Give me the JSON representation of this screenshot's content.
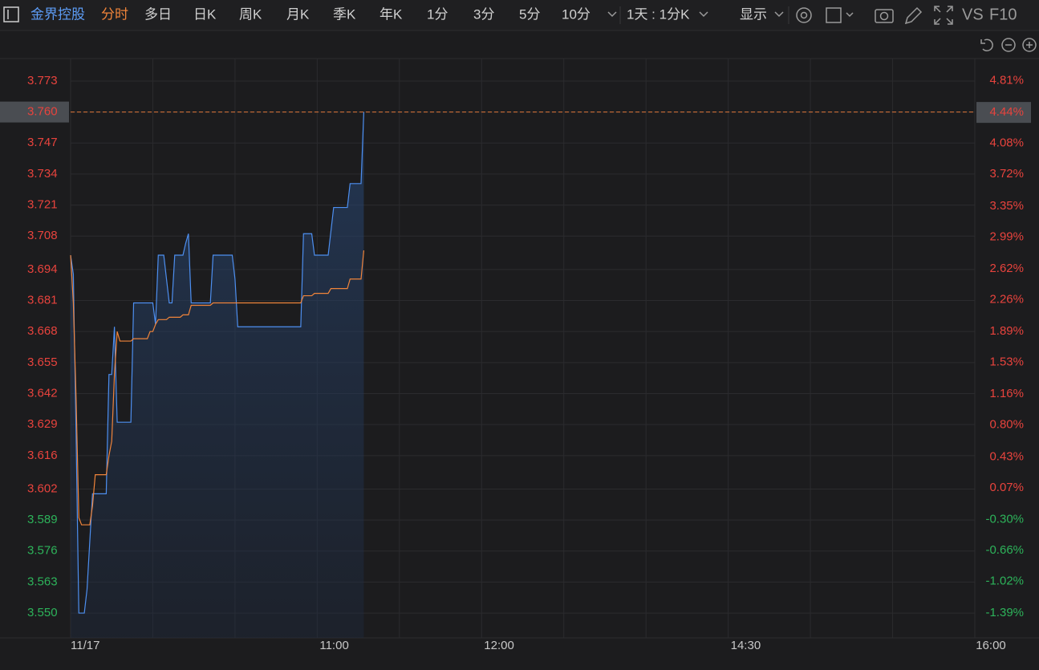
{
  "toolbar": {
    "stock": "金界控股",
    "tabs": [
      "分时",
      "多日",
      "日K",
      "周K",
      "月K",
      "季K",
      "年K",
      "1分",
      "3分",
      "5分",
      "10分"
    ],
    "period": "1天 : 1分K",
    "display": "显示",
    "vs": "VS",
    "f10": "F10"
  },
  "chart_data": {
    "type": "line",
    "x": [
      "09:30",
      "09:31",
      "09:32",
      "09:33",
      "09:34",
      "09:35",
      "09:36",
      "09:37",
      "09:38",
      "09:39",
      "09:40",
      "09:41",
      "09:42",
      "09:43",
      "09:44",
      "09:45",
      "09:46",
      "09:47",
      "09:48",
      "09:49",
      "09:50",
      "09:51",
      "09:52",
      "09:53",
      "09:54",
      "09:55",
      "09:56",
      "09:57",
      "09:58",
      "09:59",
      "10:00",
      "10:01",
      "10:02",
      "10:03",
      "10:04",
      "10:05",
      "10:06",
      "10:07",
      "10:08",
      "10:09",
      "10:10",
      "10:11",
      "10:12",
      "10:13",
      "10:14",
      "10:15",
      "10:16",
      "10:17",
      "10:18",
      "10:19",
      "10:20",
      "10:21",
      "10:22",
      "10:23",
      "10:24",
      "10:25",
      "10:26",
      "10:27",
      "10:28",
      "10:29",
      "10:30",
      "10:31",
      "10:32",
      "10:33",
      "10:34",
      "10:35",
      "10:36",
      "10:37",
      "10:38",
      "10:39",
      "10:40",
      "10:41",
      "10:42",
      "10:43",
      "10:44",
      "10:45",
      "10:46",
      "10:47",
      "10:48",
      "10:49",
      "10:50",
      "10:51",
      "10:52",
      "10:53",
      "10:54",
      "10:55",
      "10:56",
      "10:57",
      "10:58",
      "10:59",
      "11:00",
      "11:01",
      "11:02",
      "11:03",
      "11:04",
      "11:05",
      "11:06",
      "11:07",
      "11:08",
      "11:09",
      "11:10",
      "11:11",
      "11:12",
      "11:13",
      "11:14",
      "11:15",
      "11:16",
      "11:17"
    ],
    "series": [
      {
        "color": "#4d8ff0",
        "area": true,
        "values": [
          3.7,
          3.692,
          3.625,
          3.55,
          3.55,
          3.55,
          3.56,
          3.58,
          3.6,
          3.6,
          3.6,
          3.6,
          3.6,
          3.6,
          3.65,
          3.65,
          3.67,
          3.63,
          3.63,
          3.63,
          3.63,
          3.63,
          3.63,
          3.68,
          3.68,
          3.68,
          3.68,
          3.68,
          3.68,
          3.68,
          3.68,
          3.671,
          3.7,
          3.7,
          3.7,
          3.69,
          3.68,
          3.68,
          3.7,
          3.7,
          3.7,
          3.7,
          3.705,
          3.709,
          3.68,
          3.68,
          3.68,
          3.68,
          3.68,
          3.68,
          3.68,
          3.68,
          3.7,
          3.7,
          3.7,
          3.7,
          3.7,
          3.7,
          3.7,
          3.7,
          3.69,
          3.67,
          3.67,
          3.67,
          3.67,
          3.67,
          3.67,
          3.67,
          3.67,
          3.67,
          3.67,
          3.67,
          3.67,
          3.67,
          3.67,
          3.67,
          3.67,
          3.67,
          3.67,
          3.67,
          3.67,
          3.67,
          3.67,
          3.67,
          3.67,
          3.709,
          3.709,
          3.709,
          3.709,
          3.7,
          3.7,
          3.7,
          3.7,
          3.7,
          3.7,
          3.71,
          3.72,
          3.72,
          3.72,
          3.72,
          3.72,
          3.72,
          3.73,
          3.73,
          3.73,
          3.73,
          3.73,
          3.76
        ]
      },
      {
        "color": "#f0843a",
        "area": false,
        "values": [
          3.7,
          3.68,
          3.64,
          3.59,
          3.587,
          3.587,
          3.587,
          3.587,
          3.595,
          3.608,
          3.608,
          3.608,
          3.608,
          3.608,
          3.616,
          3.622,
          3.65,
          3.668,
          3.664,
          3.664,
          3.664,
          3.664,
          3.664,
          3.665,
          3.665,
          3.665,
          3.665,
          3.665,
          3.665,
          3.668,
          3.668,
          3.671,
          3.673,
          3.673,
          3.673,
          3.673,
          3.674,
          3.674,
          3.674,
          3.674,
          3.674,
          3.675,
          3.675,
          3.675,
          3.679,
          3.679,
          3.679,
          3.679,
          3.679,
          3.679,
          3.679,
          3.679,
          3.68,
          3.68,
          3.68,
          3.68,
          3.68,
          3.68,
          3.68,
          3.68,
          3.68,
          3.68,
          3.68,
          3.68,
          3.68,
          3.68,
          3.68,
          3.68,
          3.68,
          3.68,
          3.68,
          3.68,
          3.68,
          3.68,
          3.68,
          3.68,
          3.68,
          3.68,
          3.68,
          3.68,
          3.68,
          3.68,
          3.68,
          3.68,
          3.68,
          3.683,
          3.683,
          3.683,
          3.683,
          3.684,
          3.684,
          3.684,
          3.684,
          3.684,
          3.684,
          3.686,
          3.686,
          3.686,
          3.686,
          3.686,
          3.686,
          3.686,
          3.69,
          3.69,
          3.69,
          3.69,
          3.69,
          3.702
        ]
      }
    ],
    "sessions": [
      [
        "09:30",
        "12:00"
      ],
      [
        "13:00",
        "16:00"
      ]
    ],
    "xlim": [
      "09:30",
      "16:00"
    ],
    "xticks": [
      {
        "value": "09:30",
        "label": "11/17"
      },
      "11:00",
      "12:00",
      "14:30",
      "16:00"
    ],
    "xgrid": [
      "10:00",
      "10:30",
      "11:00",
      "11:30",
      "12:00",
      "13:30",
      "14:00",
      "14:30",
      "15:00",
      "15:30"
    ],
    "ylim": [
      3.5396,
      3.7824
    ],
    "yticks": [
      {
        "value": 3.55,
        "label": "3.550"
      },
      3.563,
      3.576,
      3.589,
      3.602,
      3.616,
      3.629,
      3.642,
      3.655,
      3.668,
      3.681,
      3.694,
      3.708,
      3.721,
      3.734,
      3.747,
      {
        "value": 3.76,
        "label": "3.760"
      },
      3.773
    ],
    "y2lim": [
      -1.678,
      5.067
    ],
    "y2ticks": [
      {
        "value": -1.39,
        "label": "-1.39%"
      },
      {
        "value": -1.02,
        "label": "-1.02%"
      },
      {
        "value": -0.66,
        "label": "-0.66%"
      },
      {
        "value": -0.3,
        "label": "-0.30%"
      },
      {
        "value": 0.07,
        "label": "0.07%"
      },
      {
        "value": 0.43,
        "label": "0.43%"
      },
      {
        "value": 0.8,
        "label": "0.80%"
      },
      {
        "value": 1.16,
        "label": "1.16%"
      },
      {
        "value": 1.53,
        "label": "1.53%"
      },
      {
        "value": 1.89,
        "label": "1.89%"
      },
      {
        "value": 2.26,
        "label": "2.26%"
      },
      {
        "value": 2.62,
        "label": "2.62%"
      },
      {
        "value": 2.99,
        "label": "2.99%"
      },
      {
        "value": 3.35,
        "label": "3.35%"
      },
      {
        "value": 3.72,
        "label": "3.72%"
      },
      {
        "value": 4.08,
        "label": "4.08%"
      },
      {
        "value": 4.44,
        "label": "4.44%"
      },
      {
        "value": 4.81,
        "label": "4.81%"
      }
    ],
    "last_price": {
      "value": 3.76,
      "label": "3.760"
    },
    "last_change": {
      "value": 4.44,
      "label": "4.44%"
    },
    "grid": true
  }
}
